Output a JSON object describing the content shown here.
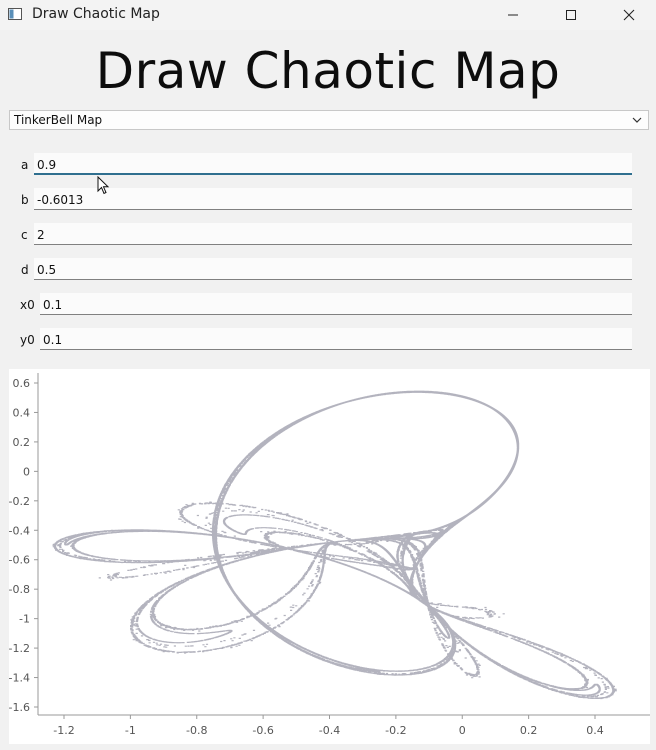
{
  "window": {
    "title": "Draw Chaotic Map",
    "controls": [
      "minimize",
      "maximize",
      "close"
    ]
  },
  "heading": "Draw Chaotic Map",
  "map_selector": {
    "selected": "TinkerBell Map"
  },
  "params": [
    {
      "label": "a",
      "value": "0.9"
    },
    {
      "label": "b",
      "value": "-0.6013"
    },
    {
      "label": "c",
      "value": "2"
    },
    {
      "label": "d",
      "value": "0.5"
    },
    {
      "label": "x0",
      "value": "0.1"
    },
    {
      "label": "y0",
      "value": "0.1"
    }
  ],
  "colors": {
    "points": "#9a9aa8",
    "axis": "#999999",
    "background": "#ffffff"
  },
  "chart_data": {
    "type": "scatter",
    "title": "",
    "xlabel": "",
    "ylabel": "",
    "xlim": [
      -1.3,
      0.5
    ],
    "ylim": [
      -1.65,
      0.65
    ],
    "x_ticks": [
      "-1.2",
      "-1",
      "-0.8",
      "-0.6",
      "-0.4",
      "-0.2",
      "0",
      "0.2",
      "0.4"
    ],
    "y_ticks": [
      "0.6",
      "0.4",
      "0.2",
      "0",
      "-0.2",
      "-0.4",
      "-0.6",
      "-0.8",
      "-1",
      "-1.2",
      "-1.4",
      "-1.6"
    ],
    "grid": false,
    "series": [
      {
        "map": "tinkerbell",
        "params": {
          "a": 0.9,
          "b": -0.6013,
          "c": 2,
          "d": 0.5
        },
        "initial": {
          "x0": 0.1,
          "y0": 0.1
        },
        "iterations": 60000
      }
    ]
  }
}
